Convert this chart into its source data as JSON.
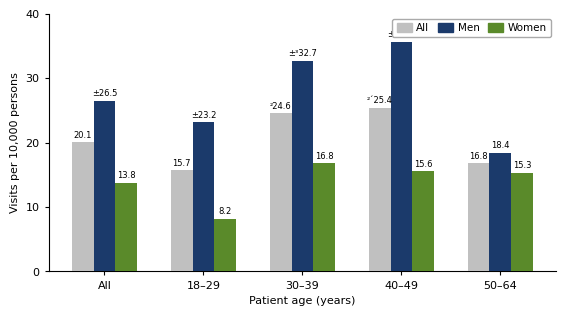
{
  "categories": [
    "All",
    "18–29",
    "30–39",
    "40–49",
    "50–64"
  ],
  "all_values": [
    20.1,
    15.7,
    24.6,
    25.4,
    16.8
  ],
  "men_values": [
    26.5,
    23.2,
    32.7,
    35.7,
    18.4
  ],
  "women_values": [
    13.8,
    8.2,
    16.8,
    15.6,
    15.3
  ],
  "all_labels": [
    "20.1",
    "15.7",
    "²24.6",
    "²´25.4",
    "16.8"
  ],
  "men_labels": [
    "±26.5",
    "±23.2",
    "±³32.7",
    "±³35.7",
    "18.4"
  ],
  "women_labels": [
    "13.8",
    "8.2",
    "16.8",
    "15.6",
    "15.3"
  ],
  "all_color": "#c0c0c0",
  "men_color": "#1b3a6b",
  "women_color": "#5a8a2a",
  "ylabel": "Visits per 10,000 persons",
  "xlabel": "Patient age (years)",
  "ylim": [
    0,
    40
  ],
  "yticks": [
    0,
    10,
    20,
    30,
    40
  ],
  "legend_labels": [
    "All",
    "Men",
    "Women"
  ],
  "bar_width": 0.22
}
